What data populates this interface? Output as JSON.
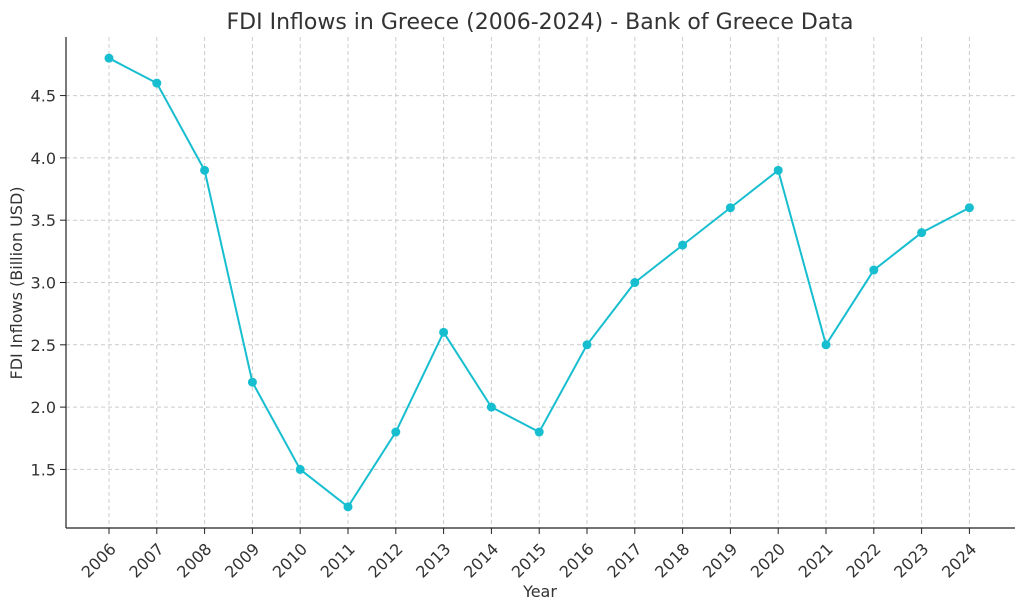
{
  "chart_data": {
    "type": "line",
    "title": "FDI Inflows in Greece (2006-2024) - Bank of Greece Data",
    "xlabel": "Year",
    "ylabel": "FDI Inflows (Billion USD)",
    "categories": [
      "2006",
      "2007",
      "2008",
      "2009",
      "2010",
      "2011",
      "2012",
      "2013",
      "2014",
      "2015",
      "2016",
      "2017",
      "2018",
      "2019",
      "2020",
      "2021",
      "2022",
      "2023",
      "2024"
    ],
    "series": [
      {
        "name": "FDI Inflows",
        "values": [
          4.8,
          4.6,
          3.9,
          2.2,
          1.5,
          1.2,
          1.8,
          2.6,
          2.0,
          1.8,
          2.5,
          3.0,
          3.3,
          3.6,
          3.9,
          2.5,
          3.1,
          3.4,
          3.6
        ],
        "color": "#17becf"
      }
    ],
    "yticks": [
      "1.5",
      "2.0",
      "2.5",
      "3.0",
      "3.5",
      "4.0",
      "4.5"
    ],
    "ylim": [
      1.03,
      4.97
    ],
    "grid": true,
    "marker": "circle"
  }
}
